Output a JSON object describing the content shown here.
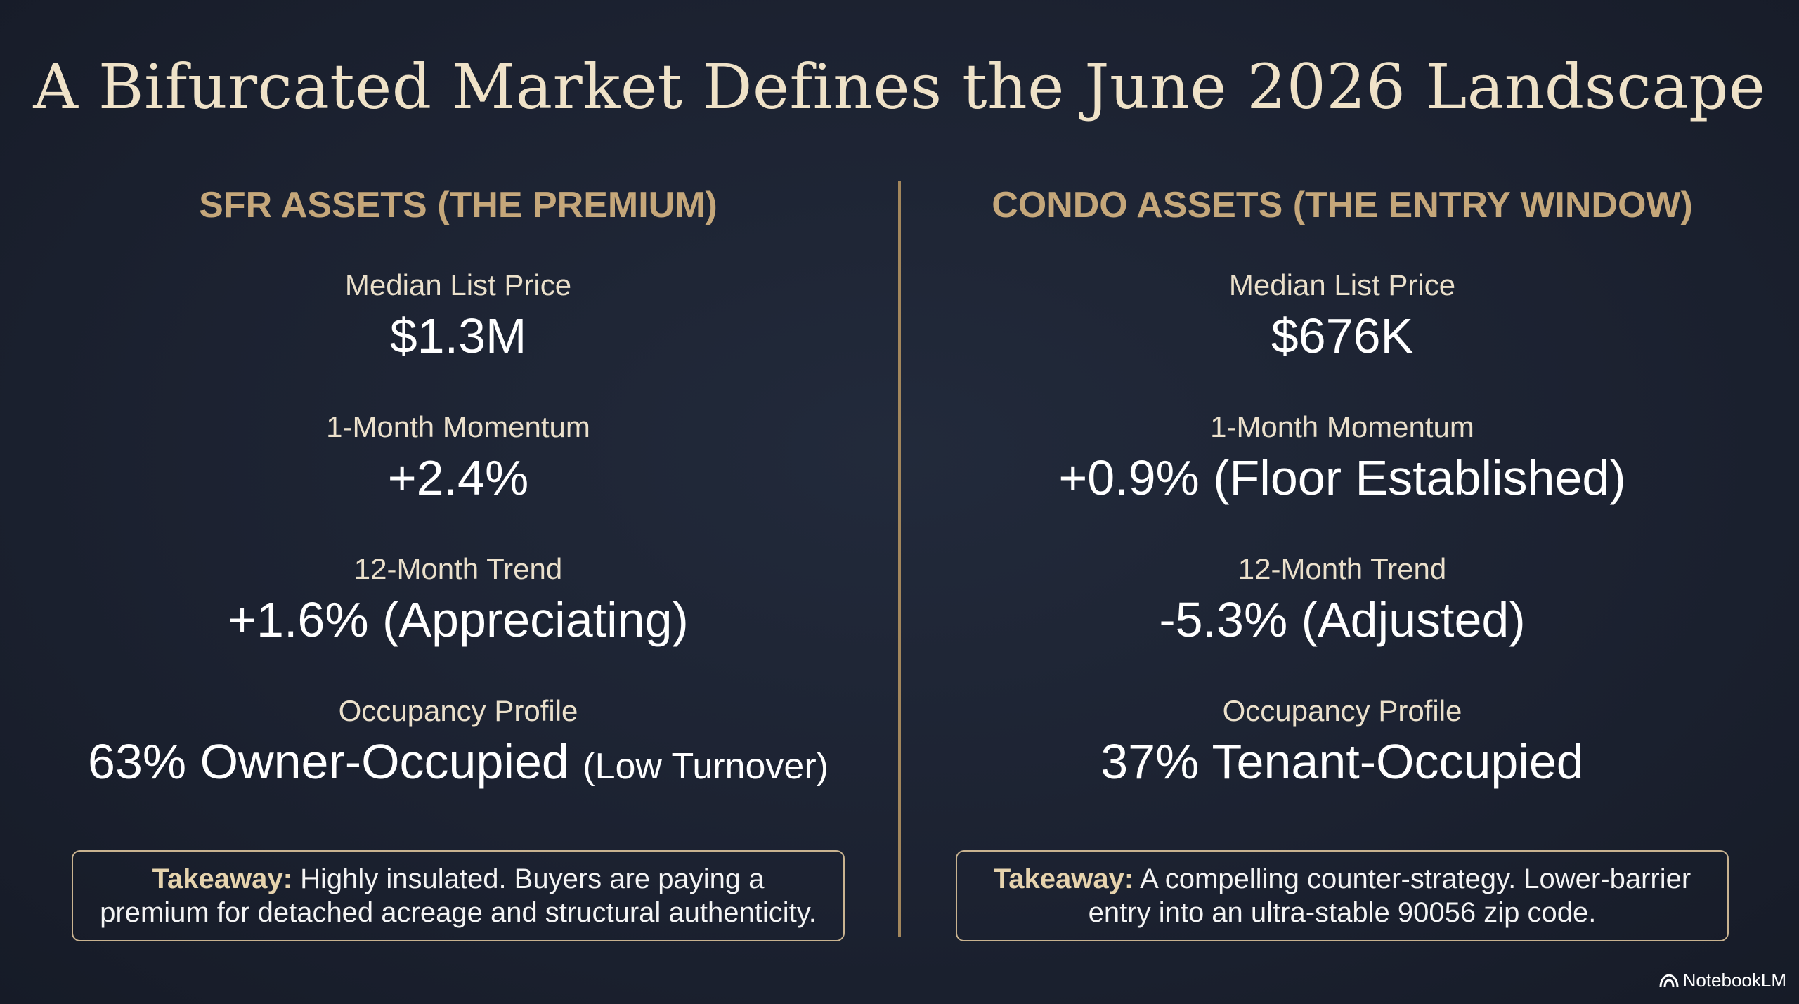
{
  "title": "A Bifurcated Market Defines the June 2026 Landscape",
  "columns": [
    {
      "heading": "SFR ASSETS (THE PREMIUM)",
      "metrics": [
        {
          "label": "Median List Price",
          "value": "$1.3M",
          "suffix": ""
        },
        {
          "label": "1-Month Momentum",
          "value": "+2.4%",
          "suffix": ""
        },
        {
          "label": "12-Month Trend",
          "value": "+1.6% (Appreciating)",
          "suffix": ""
        },
        {
          "label": "Occupancy Profile",
          "value": "63% Owner-Occupied",
          "suffix": "(Low Turnover)"
        }
      ],
      "takeaway": {
        "label": "Takeaway:",
        "text": "Highly insulated. Buyers are paying a premium for detached acreage and structural authenticity."
      }
    },
    {
      "heading": "CONDO ASSETS (THE ENTRY WINDOW)",
      "metrics": [
        {
          "label": "Median List Price",
          "value": "$676K",
          "suffix": ""
        },
        {
          "label": "1-Month Momentum",
          "value": "+0.9% (Floor Established)",
          "suffix": ""
        },
        {
          "label": "12-Month Trend",
          "value": "-5.3% (Adjusted)",
          "suffix": ""
        },
        {
          "label": "Occupancy Profile",
          "value": "37% Tenant-Occupied",
          "suffix": ""
        }
      ],
      "takeaway": {
        "label": "Takeaway:",
        "text": "A compelling counter-strategy. Lower-barrier entry into an ultra-stable 90056 zip code."
      }
    }
  ],
  "brand": {
    "name": "NotebookLM",
    "icon": "notebooklm-logo-icon"
  },
  "colors": {
    "background": "#1c2231",
    "title": "#efe2c8",
    "heading": "#c5a77a",
    "divider": "#a2865c",
    "takeaway_border": "#c9b390"
  }
}
